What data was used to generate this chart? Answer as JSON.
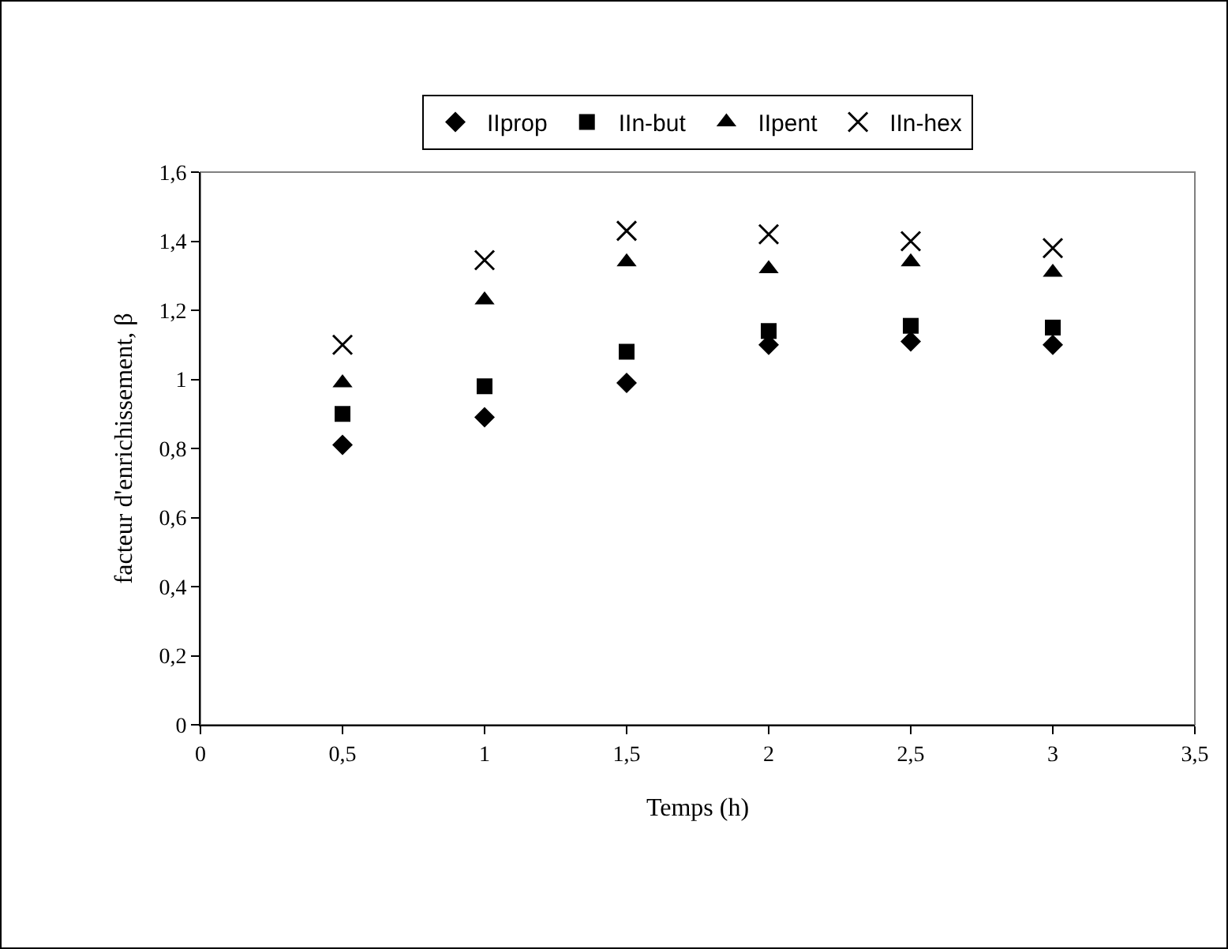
{
  "chart_data": {
    "type": "scatter",
    "xlabel": "Temps (h)",
    "ylabel": "facteur d'enrichissement, β",
    "x": [
      0.5,
      1,
      1.5,
      2,
      2.5,
      3
    ],
    "series": [
      {
        "name": "IIprop",
        "color": "#000000",
        "marker": "diamond",
        "values": [
          0.81,
          0.89,
          0.99,
          1.1,
          1.11,
          1.1
        ]
      },
      {
        "name": "IIn-but",
        "color": "#000000",
        "marker": "square",
        "values": [
          0.9,
          0.98,
          1.08,
          1.14,
          1.155,
          1.15
        ]
      },
      {
        "name": "IIpent",
        "color": "#000000",
        "marker": "triangle",
        "values": [
          0.99,
          1.23,
          1.34,
          1.32,
          1.34,
          1.31
        ]
      },
      {
        "name": "IIn-hex",
        "color": "#000000",
        "marker": "cross",
        "values": [
          1.1,
          1.345,
          1.43,
          1.42,
          1.4,
          1.38
        ]
      }
    ],
    "xlim": [
      0,
      3.5
    ],
    "xticks": [
      0,
      {
        "value": 0.5,
        "label": "0,5"
      },
      1,
      {
        "value": 1.5,
        "label": "1,5"
      },
      2,
      {
        "value": 2.5,
        "label": "2,5"
      },
      3,
      {
        "value": 3.5,
        "label": "3,5"
      }
    ],
    "ylim": [
      0,
      1.6
    ],
    "yticks": [
      0,
      {
        "value": 0.2,
        "label": "0,2"
      },
      {
        "value": 0.4,
        "label": "0,4"
      },
      {
        "value": 0.6,
        "label": "0,6"
      },
      {
        "value": 0.8,
        "label": "0,8"
      },
      1,
      {
        "value": 1.2,
        "label": "1,2"
      },
      {
        "value": 1.4,
        "label": "1,4"
      },
      {
        "value": 1.6,
        "label": "1,6"
      }
    ],
    "grid": false,
    "legend": "top"
  }
}
